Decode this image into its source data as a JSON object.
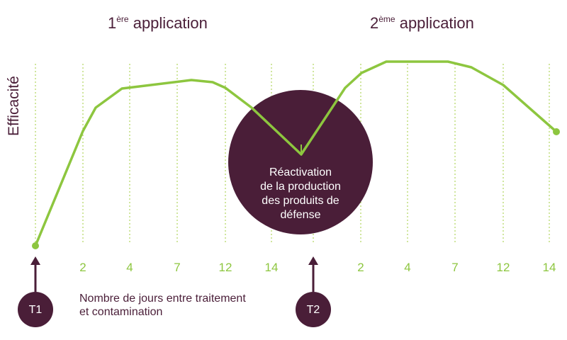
{
  "headings": [
    {
      "number": "1",
      "superscript": "ère",
      "text": " application"
    },
    {
      "number": "2",
      "superscript": "ème",
      "text": " application"
    }
  ],
  "y_axis_label": "Efficacité",
  "day_labels": [
    [
      "2",
      "4",
      "7",
      "12",
      "14"
    ],
    [
      "2",
      "4",
      "7",
      "12",
      "14"
    ]
  ],
  "markers": [
    "T1",
    "T2"
  ],
  "x_axis_label": [
    "Nombre de jours entre traitement",
    "et contamination"
  ],
  "callout": [
    "Réactivation",
    "de la production",
    "des produits de",
    "défense"
  ]
}
